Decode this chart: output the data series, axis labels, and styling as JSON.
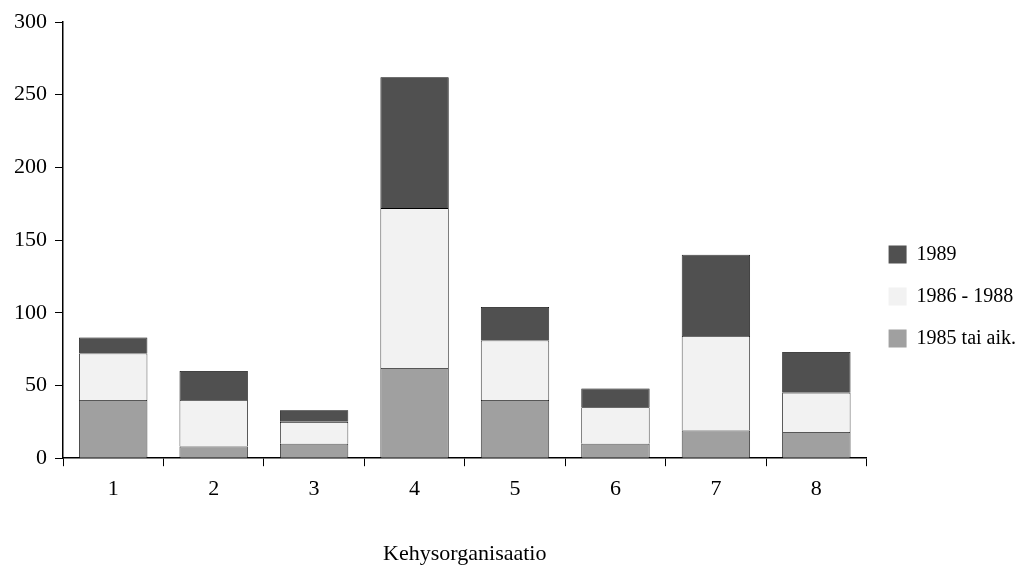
{
  "chart_data": {
    "type": "bar",
    "stacked": true,
    "xlabel": "Kehysorganisaatio",
    "categories": [
      "1",
      "2",
      "3",
      "4",
      "5",
      "6",
      "7",
      "8"
    ],
    "series": [
      {
        "name": "1985 tai aik.",
        "color": "#a0a0a0",
        "values": [
          40,
          8,
          10,
          62,
          40,
          10,
          19,
          18
        ]
      },
      {
        "name": "1986 - 1988",
        "color": "#f2f2f2",
        "values": [
          32,
          32,
          15,
          110,
          41,
          25,
          65,
          27
        ]
      },
      {
        "name": "1989",
        "color": "#505050",
        "values": [
          11,
          20,
          8,
          90,
          23,
          13,
          56,
          28
        ]
      }
    ],
    "ylim": [
      0,
      300
    ],
    "yticks": [
      0,
      50,
      100,
      150,
      200,
      250,
      300
    ],
    "legend": "right"
  }
}
